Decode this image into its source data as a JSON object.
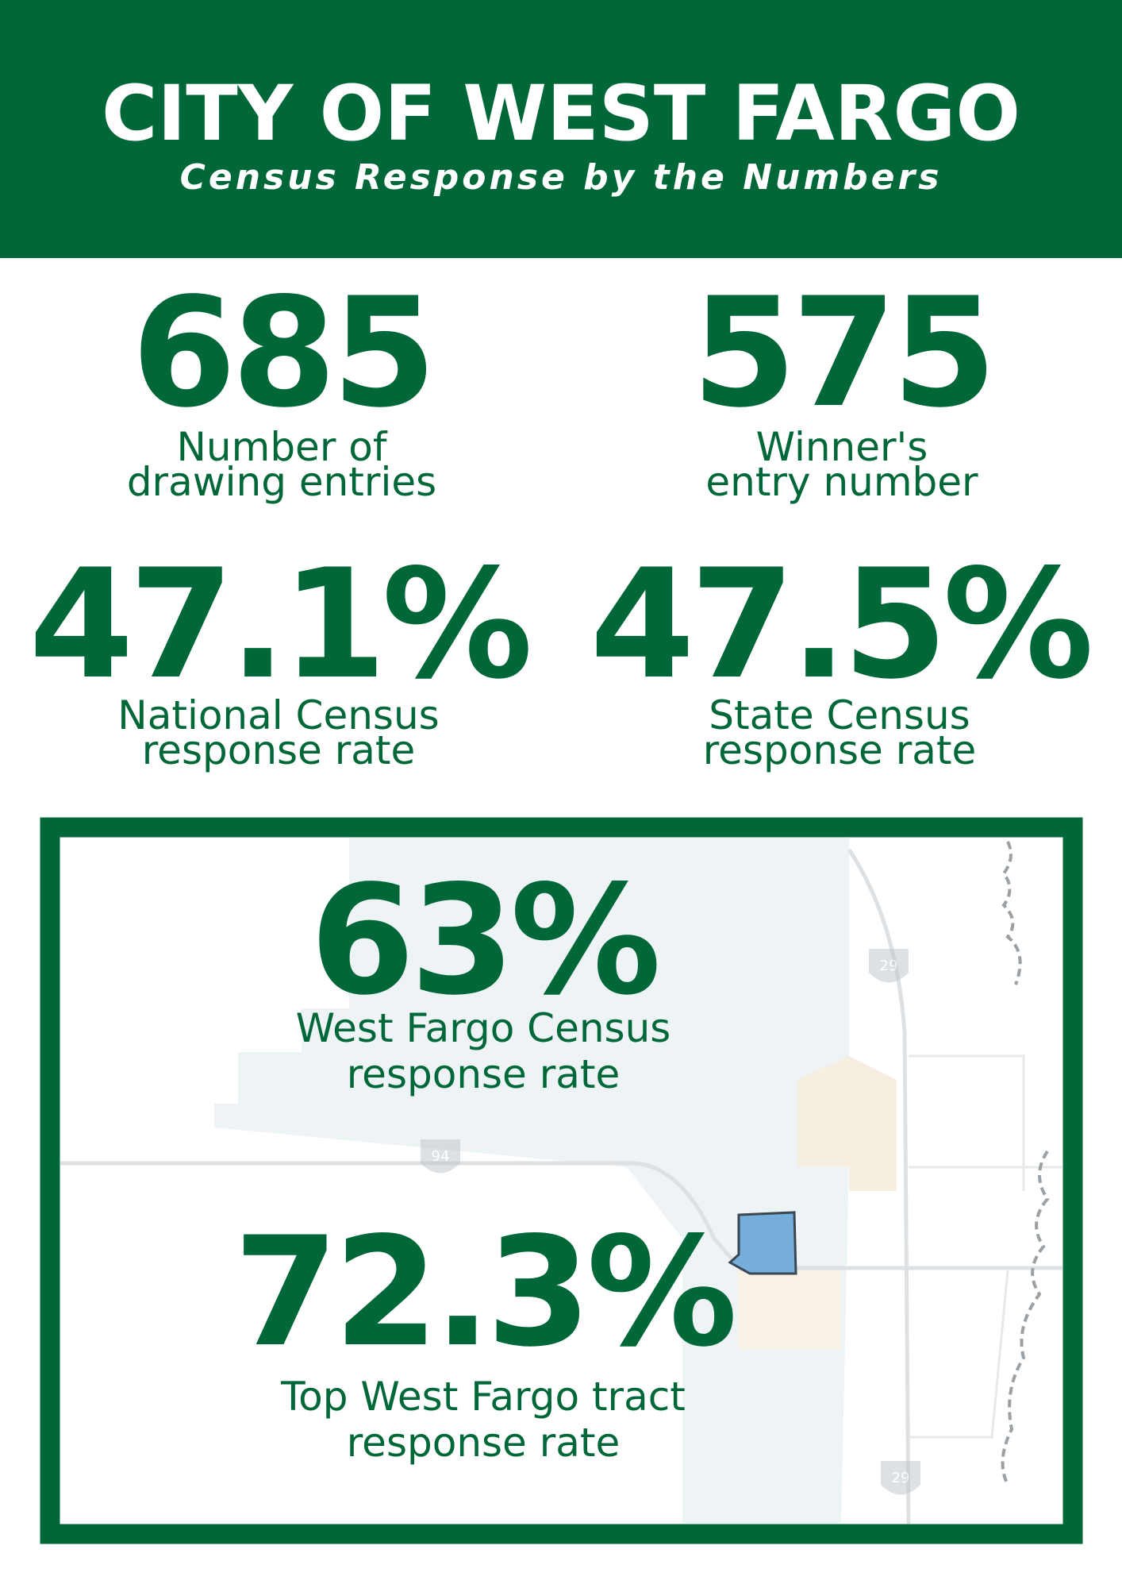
{
  "header": {
    "title": "CITY OF WEST FARGO",
    "subtitle": "Census Response by the Numbers"
  },
  "stats": [
    {
      "value": "685",
      "label": [
        "Number of",
        "drawing entries"
      ]
    },
    {
      "value": "575",
      "label": [
        "Winner's",
        "entry number"
      ]
    },
    {
      "value": "47.1%",
      "label": [
        "National Census",
        "response rate"
      ]
    },
    {
      "value": "47.5%",
      "label": [
        "State Census",
        "response rate"
      ]
    }
  ],
  "map_stats": [
    {
      "value": "63%",
      "label": [
        "West Fargo Census",
        "response rate"
      ]
    },
    {
      "value": "72.3%",
      "label": [
        "Top West Fargo tract",
        "response rate"
      ]
    }
  ],
  "map": {
    "shields": [
      "29",
      "94",
      "29"
    ]
  }
}
